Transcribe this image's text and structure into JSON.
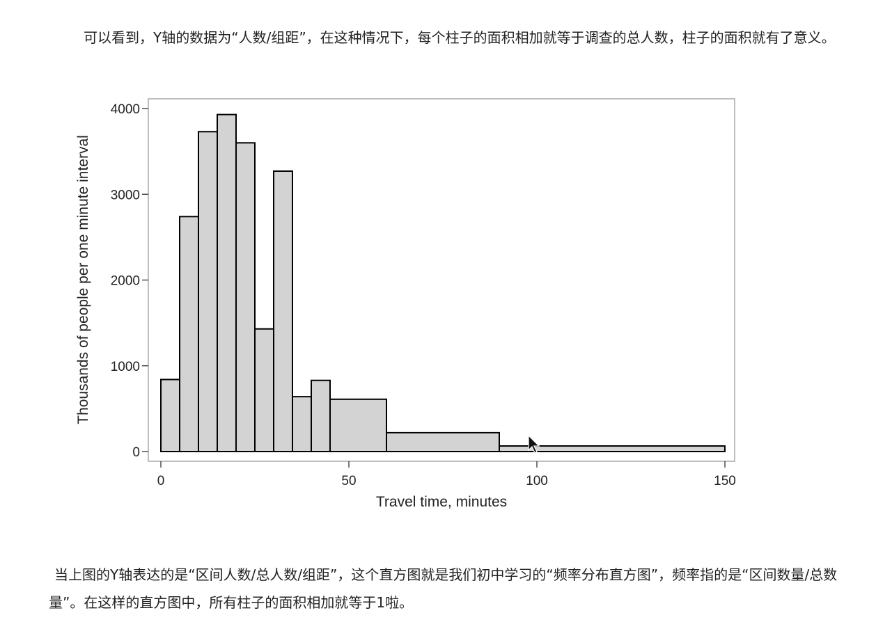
{
  "text": {
    "paragraph_top": "可以看到，Y轴的数据为“人数/组距”，在这种情况下，每个柱子的面积相加就等于调查的总人数，柱子的面积就有了意义。",
    "paragraph_bottom": "当上图的Y轴表达的是“区间人数/总人数/组距”，这个直方图就是我们初中学习的“频率分布直方图”，频率指的是“区间数量/总数量”。在这样的直方图中，所有柱子的面积相加就等于1啦。"
  },
  "chart_data": {
    "type": "bar",
    "title": "",
    "xlabel": "Travel time, minutes",
    "ylabel": "Thousands of people per one minute interval",
    "xlim": [
      0,
      150
    ],
    "ylim": [
      0,
      4000
    ],
    "xticks": [
      0,
      50,
      100,
      150
    ],
    "yticks": [
      0,
      1000,
      2000,
      3000,
      4000
    ],
    "grid": false,
    "bins": [
      {
        "x0": 0,
        "x1": 5,
        "value": 840
      },
      {
        "x0": 5,
        "x1": 10,
        "value": 2740
      },
      {
        "x0": 10,
        "x1": 15,
        "value": 3730
      },
      {
        "x0": 15,
        "x1": 20,
        "value": 3930
      },
      {
        "x0": 20,
        "x1": 25,
        "value": 3600
      },
      {
        "x0": 25,
        "x1": 30,
        "value": 1430
      },
      {
        "x0": 30,
        "x1": 35,
        "value": 3270
      },
      {
        "x0": 35,
        "x1": 40,
        "value": 640
      },
      {
        "x0": 40,
        "x1": 45,
        "value": 830
      },
      {
        "x0": 45,
        "x1": 60,
        "value": 610
      },
      {
        "x0": 60,
        "x1": 90,
        "value": 220
      },
      {
        "x0": 90,
        "x1": 150,
        "value": 65
      }
    ],
    "bar_fill": "#d3d3d3",
    "bar_stroke": "#000000"
  }
}
